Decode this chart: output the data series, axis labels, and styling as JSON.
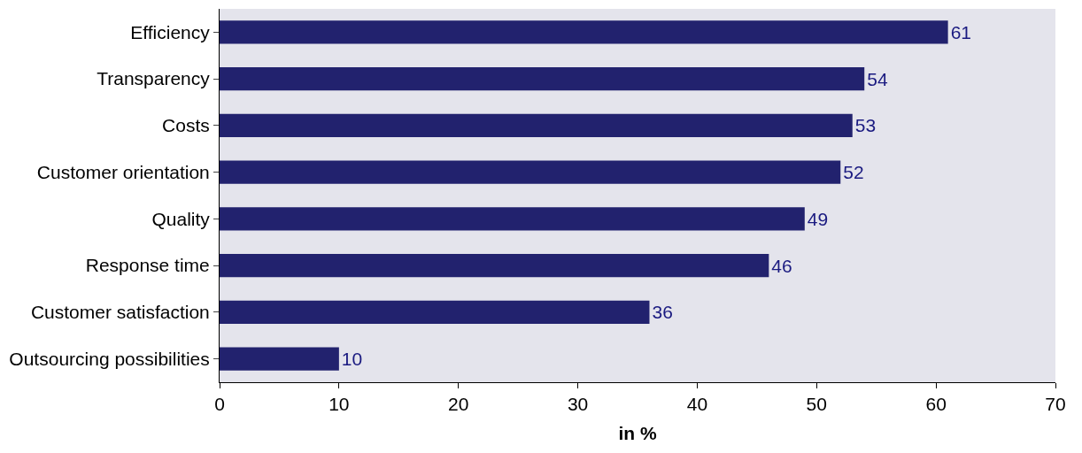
{
  "chart_data": {
    "type": "bar",
    "orientation": "horizontal",
    "xlabel": "in %",
    "categories": [
      "Efficiency",
      "Transparency",
      "Costs",
      "Customer orientation",
      "Quality",
      "Response time",
      "Customer satisfaction",
      "Outsourcing possibilities"
    ],
    "values": [
      61,
      54,
      53,
      52,
      49,
      46,
      36,
      10
    ],
    "color": "#22226e",
    "xlim": [
      0,
      70
    ],
    "xticks": [
      0,
      10,
      20,
      30,
      40,
      50,
      60,
      70
    ],
    "data_labels": true
  }
}
